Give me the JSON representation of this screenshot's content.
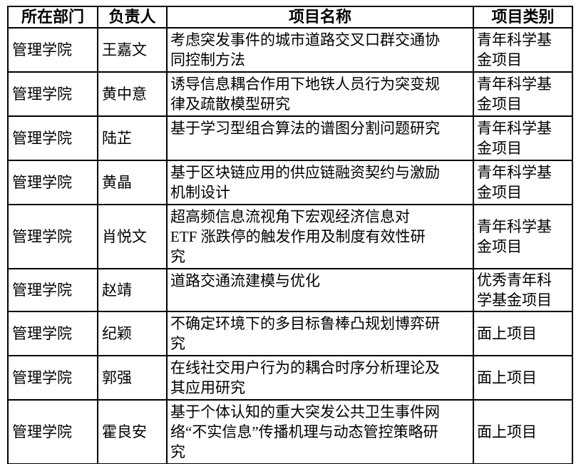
{
  "table": {
    "columns": [
      {
        "label": "所在部门"
      },
      {
        "label": "负责人"
      },
      {
        "label": "项目名称"
      },
      {
        "label": "项目类别"
      }
    ],
    "rows": [
      {
        "department": "管理学院",
        "leader": "王嘉文",
        "project": "考虑突发事件的城市道路交叉口群交通协\n同控制方法",
        "category": "青年科学基\n金项目"
      },
      {
        "department": "管理学院",
        "leader": "黄中意",
        "project": "诱导信息耦合作用下地铁人员行为突变规\n律及疏散模型研究",
        "category": "青年科学基\n金项目"
      },
      {
        "department": "管理学院",
        "leader": "陆芷",
        "project": "基于学习型组合算法的谱图分割问题研究",
        "category": "青年科学基\n金项目"
      },
      {
        "department": "管理学院",
        "leader": "黄晶",
        "project": "基于区块链应用的供应链融资契约与激励\n机制设计",
        "category": "青年科学基\n金项目"
      },
      {
        "department": "管理学院",
        "leader": "肖悦文",
        "project": "超高频信息流视角下宏观经济信息对\nETF 涨跌停的触发作用及制度有效性研\n究",
        "category": "青年科学基\n金项目"
      },
      {
        "department": "管理学院",
        "leader": "赵靖",
        "project": "道路交通流建模与优化",
        "category": "优秀青年科\n学基金项目"
      },
      {
        "department": "管理学院",
        "leader": "纪颖",
        "project": "不确定环境下的多目标鲁棒凸规划博弈研\n究",
        "category": "面上项目"
      },
      {
        "department": "管理学院",
        "leader": "郭强",
        "project": "在线社交用户行为的耦合时序分析理论及\n其应用研究",
        "category": "面上项目"
      },
      {
        "department": "管理学院",
        "leader": "霍良安",
        "project": "基于个体认知的重大突发公共卫生事件网\n络“不实信息”传播机理与动态管控策略研\n究",
        "category": "面上项目"
      }
    ]
  },
  "colors": {
    "background": "#ffffff",
    "border": "#000000",
    "text": "#000000"
  }
}
